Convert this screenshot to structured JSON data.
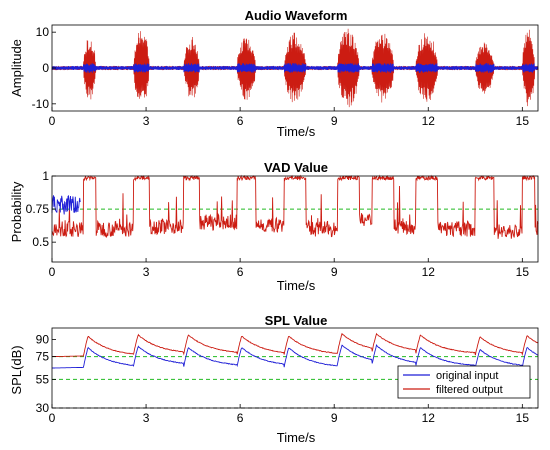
{
  "colors": {
    "blue": "#1f1fd6",
    "red": "#cc1c12",
    "green": "#22bb22",
    "black": "#000000"
  },
  "chart_data": [
    {
      "type": "line",
      "title": "Audio Waveform",
      "xlabel": "Time/s",
      "ylabel": "Amplitude",
      "xlim": [
        0,
        15.5
      ],
      "ylim": [
        -12,
        12
      ],
      "xticks": [
        0,
        3,
        6,
        9,
        12,
        15
      ],
      "yticks": [
        10,
        0,
        -10
      ],
      "bursts": [
        {
          "start": 1.0,
          "end": 1.4,
          "amp": 9
        },
        {
          "start": 2.6,
          "end": 3.1,
          "amp": 11
        },
        {
          "start": 4.2,
          "end": 4.7,
          "amp": 9
        },
        {
          "start": 5.9,
          "end": 6.5,
          "amp": 9
        },
        {
          "start": 7.4,
          "end": 8.1,
          "amp": 10
        },
        {
          "start": 9.1,
          "end": 9.8,
          "amp": 11
        },
        {
          "start": 10.2,
          "end": 10.9,
          "amp": 10
        },
        {
          "start": 11.6,
          "end": 12.3,
          "amp": 10
        },
        {
          "start": 13.5,
          "end": 14.1,
          "amp": 8
        },
        {
          "start": 15.0,
          "end": 15.4,
          "amp": 11
        }
      ],
      "series": [
        {
          "color": "red",
          "role": "filtered"
        },
        {
          "color": "blue",
          "role": "original"
        }
      ]
    },
    {
      "type": "line",
      "title": "VAD Value",
      "xlabel": "Time/s",
      "ylabel": "Probability",
      "xlim": [
        0,
        15.5
      ],
      "ylim": [
        0.35,
        1.0
      ],
      "xticks": [
        0,
        3,
        6,
        9,
        12,
        15
      ],
      "yticks": [
        1,
        0.75,
        0.5
      ],
      "threshold": 0.75,
      "speech_segments": [
        {
          "start": 1.0,
          "end": 1.4
        },
        {
          "start": 2.6,
          "end": 3.1
        },
        {
          "start": 4.2,
          "end": 4.7
        },
        {
          "start": 5.9,
          "end": 6.5
        },
        {
          "start": 7.4,
          "end": 8.1
        },
        {
          "start": 9.1,
          "end": 9.8
        },
        {
          "start": 10.2,
          "end": 10.9
        },
        {
          "start": 11.6,
          "end": 12.3
        },
        {
          "start": 13.5,
          "end": 14.1
        },
        {
          "start": 15.0,
          "end": 15.4
        }
      ],
      "baseline_levels": [
        0.6,
        0.62,
        0.65,
        0.63,
        0.6,
        0.66,
        0.62,
        0.6,
        0.58,
        0.6
      ]
    },
    {
      "type": "line",
      "title": "SPL Value",
      "xlabel": "Time/s",
      "ylabel": "SPL(dB)",
      "xlim": [
        0,
        15.5
      ],
      "ylim": [
        30,
        100
      ],
      "xticks": [
        0,
        3,
        6,
        9,
        12,
        15
      ],
      "yticks": [
        90,
        75,
        55,
        30
      ],
      "reference_lines": [
        {
          "value": 75,
          "color": "green"
        },
        {
          "value": 55,
          "color": "green"
        },
        {
          "value": 30,
          "color": "black"
        }
      ],
      "peaks": [
        1.0,
        2.6,
        4.2,
        5.9,
        7.4,
        9.1,
        10.2,
        11.6,
        13.5,
        15.0
      ],
      "original_base": [
        65,
        67,
        66,
        66,
        65,
        68,
        67,
        66,
        65,
        66
      ],
      "original_peak": [
        87,
        88,
        87,
        87,
        87,
        89,
        89,
        87,
        85,
        87
      ],
      "filtered_base": [
        75,
        77,
        77,
        76,
        76,
        78,
        78,
        77,
        76,
        77
      ],
      "filtered_peak": [
        97,
        98,
        98,
        97,
        97,
        99,
        99,
        98,
        96,
        97
      ],
      "legend": {
        "position": "bottom-right",
        "entries": [
          {
            "label": "original input",
            "color": "blue"
          },
          {
            "label": "filtered output",
            "color": "red"
          }
        ]
      }
    }
  ]
}
